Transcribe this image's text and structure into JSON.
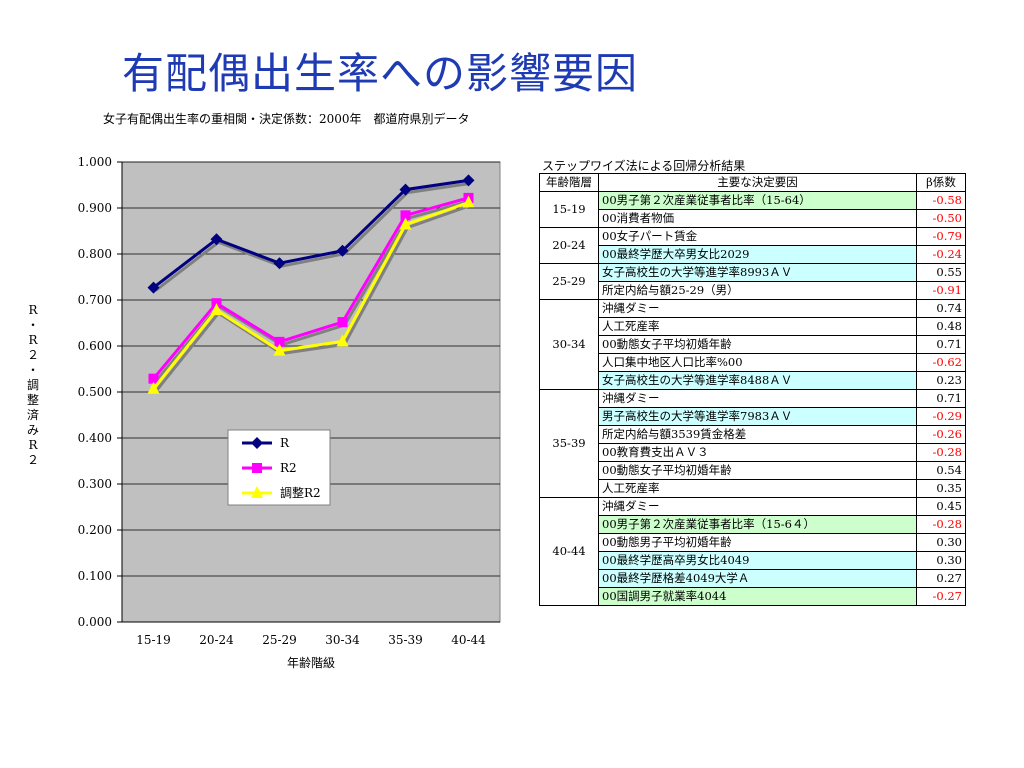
{
  "page": {
    "title": "有配偶出生率への影響要因",
    "subtitle": "女子有配偶出生率の重相関・決定係数：2000年　都道府県別データ"
  },
  "chart_data": {
    "type": "line",
    "categories": [
      "15-19",
      "20-24",
      "25-29",
      "30-34",
      "35-39",
      "40-44"
    ],
    "series": [
      {
        "name": "R",
        "values": [
          0.727,
          0.832,
          0.78,
          0.807,
          0.94,
          0.96
        ],
        "color": "#000080",
        "marker": "diamond"
      },
      {
        "name": "R2",
        "values": [
          0.529,
          0.693,
          0.609,
          0.652,
          0.884,
          0.922
        ],
        "color": "#ff00ff",
        "marker": "square"
      },
      {
        "name": "調整R2",
        "values": [
          0.507,
          0.678,
          0.59,
          0.61,
          0.864,
          0.912
        ],
        "color": "#ffff00",
        "marker": "triangle"
      }
    ],
    "xlabel": "年齢階級",
    "ylabel": "R・R2・調整済みR2",
    "ylim": [
      0,
      1
    ],
    "yticks": [
      "1.000",
      "0.900",
      "0.800",
      "0.700",
      "0.600",
      "0.500",
      "0.400",
      "0.300",
      "0.200",
      "0.100",
      "0.000"
    ],
    "grid": true,
    "plot_background": "#c0c0c0",
    "legend": "inside-bottom-left"
  },
  "table": {
    "caption": "ステップワイズ法による回帰分析結果",
    "headers": [
      "年齢階層",
      "主要な決定要因",
      "β係数"
    ],
    "groups": [
      {
        "age": "15-19",
        "rows": [
          {
            "factor": "00男子第２次産業従事者比率（15-64）",
            "beta": "-0.58",
            "highlight": "green"
          },
          {
            "factor": "00消費者物価",
            "beta": "-0.50",
            "highlight": ""
          }
        ]
      },
      {
        "age": "20-24",
        "rows": [
          {
            "factor": "00女子パート賃金",
            "beta": "-0.79",
            "highlight": ""
          },
          {
            "factor": "00最終学歴大卒男女比2029",
            "beta": "-0.24",
            "highlight": "blue"
          }
        ]
      },
      {
        "age": "25-29",
        "rows": [
          {
            "factor": "女子高校生の大学等進学率8993ＡＶ",
            "beta": "0.55",
            "highlight": "blue"
          },
          {
            "factor": "所定内給与額25-29（男）",
            "beta": "-0.91",
            "highlight": ""
          }
        ]
      },
      {
        "age": "30-34",
        "rows": [
          {
            "factor": "沖縄ダミー",
            "beta": "0.74",
            "highlight": ""
          },
          {
            "factor": "人工死産率",
            "beta": "0.48",
            "highlight": ""
          },
          {
            "factor": "00動態女子平均初婚年齢",
            "beta": "0.71",
            "highlight": ""
          },
          {
            "factor": "人口集中地区人口比率%00",
            "beta": "-0.62",
            "highlight": ""
          },
          {
            "factor": "女子高校生の大学等進学率8488ＡＶ",
            "beta": "0.23",
            "highlight": "blue"
          }
        ]
      },
      {
        "age": "35-39",
        "rows": [
          {
            "factor": "沖縄ダミー",
            "beta": "0.71",
            "highlight": ""
          },
          {
            "factor": "男子高校生の大学等進学率7983ＡＶ",
            "beta": "-0.29",
            "highlight": "blue"
          },
          {
            "factor": "所定内給与額3539賃金格差",
            "beta": "-0.26",
            "highlight": ""
          },
          {
            "factor": "00教育費支出ＡＶ３",
            "beta": "-0.28",
            "highlight": ""
          },
          {
            "factor": "00動態女子平均初婚年齢",
            "beta": "0.54",
            "highlight": ""
          },
          {
            "factor": "人工死産率",
            "beta": "0.35",
            "highlight": ""
          }
        ]
      },
      {
        "age": "40-44",
        "rows": [
          {
            "factor": "沖縄ダミー",
            "beta": "0.45",
            "highlight": ""
          },
          {
            "factor": "00男子第２次産業従事者比率（15-6４）",
            "beta": "-0.28",
            "highlight": "green"
          },
          {
            "factor": "00動態男子平均初婚年齢",
            "beta": "0.30",
            "highlight": ""
          },
          {
            "factor": "00最終学歴高卒男女比4049",
            "beta": "0.30",
            "highlight": "blue"
          },
          {
            "factor": "00最終学歴格差4049大学Ａ",
            "beta": "0.27",
            "highlight": "blue"
          },
          {
            "factor": "00国調男子就業率4044",
            "beta": "-0.27",
            "highlight": "green"
          }
        ]
      }
    ]
  }
}
